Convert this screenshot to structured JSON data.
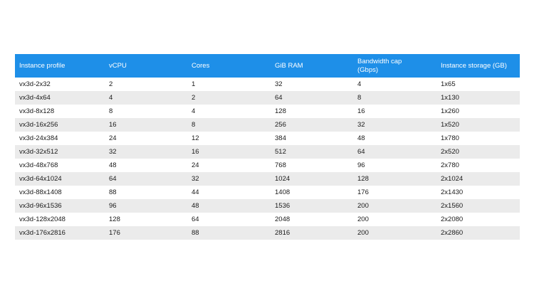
{
  "table": {
    "headers": [
      "Instance profile",
      "vCPU",
      "Cores",
      "GiB RAM",
      "Bandwidth cap (Gbps)",
      "Instance storage (GB)"
    ],
    "header_color": "#1e8fe8",
    "rows": [
      [
        "vx3d-2x32",
        "2",
        "1",
        "32",
        "4",
        "1x65"
      ],
      [
        "vx3d-4x64",
        "4",
        "2",
        "64",
        "8",
        "1x130"
      ],
      [
        "vx3d-8x128",
        "8",
        "4",
        "128",
        "16",
        "1x260"
      ],
      [
        "vx3d-16x256",
        "16",
        "8",
        "256",
        "32",
        "1x520"
      ],
      [
        "vx3d-24x384",
        "24",
        "12",
        "384",
        "48",
        "1x780"
      ],
      [
        "vx3d-32x512",
        "32",
        "16",
        "512",
        "64",
        "2x520"
      ],
      [
        "vx3d-48x768",
        "48",
        "24",
        "768",
        "96",
        "2x780"
      ],
      [
        "vx3d-64x1024",
        "64",
        "32",
        "1024",
        "128",
        "2x1024"
      ],
      [
        "vx3d-88x1408",
        "88",
        "44",
        "1408",
        "176",
        "2x1430"
      ],
      [
        "vx3d-96x1536",
        "96",
        "48",
        "1536",
        "200",
        "2x1560"
      ],
      [
        "vx3d-128x2048",
        "128",
        "64",
        "2048",
        "200",
        "2x2080"
      ],
      [
        "vx3d-176x2816",
        "176",
        "88",
        "2816",
        "200",
        "2x2860"
      ]
    ]
  }
}
